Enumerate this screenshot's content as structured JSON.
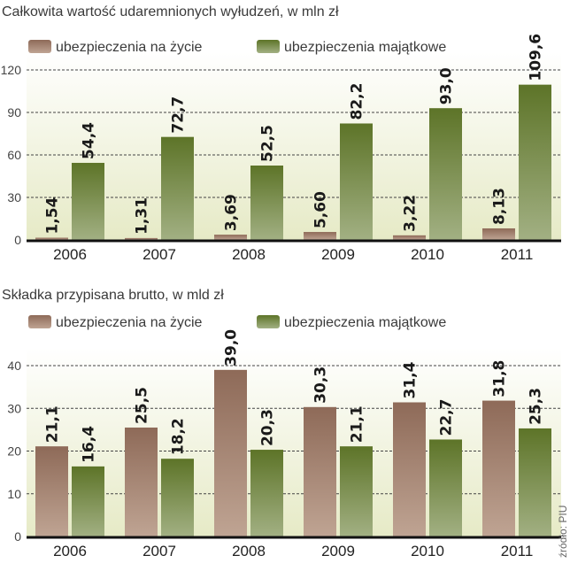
{
  "colors": {
    "life": "#9a7565",
    "property": "#6b7f3a",
    "background_bottom": "#e9edcc"
  },
  "source": "źródło: PIU",
  "chart_data": [
    {
      "type": "bar",
      "title": "Całkowita wartość udaremnionych wyłudzeń, w mln zł",
      "categories": [
        "2006",
        "2007",
        "2008",
        "2009",
        "2010",
        "2011"
      ],
      "series": [
        {
          "name": "ubezpieczenia na życie",
          "values": [
            1.54,
            1.31,
            3.69,
            5.6,
            3.22,
            8.13
          ],
          "labels": [
            "1,54",
            "1,31",
            "3,69",
            "5,60",
            "3,22",
            "8,13"
          ]
        },
        {
          "name": "ubezpieczenia majątkowe",
          "values": [
            54.4,
            72.7,
            52.5,
            82.2,
            93.0,
            109.6
          ],
          "labels": [
            "54,4",
            "72,7",
            "52,5",
            "82,2",
            "93,0",
            "109,6"
          ]
        }
      ],
      "yticks": [
        "0",
        "30",
        "60",
        "90",
        "120"
      ],
      "ylim": [
        0,
        120
      ],
      "grid": true,
      "legend": "top-left"
    },
    {
      "type": "bar",
      "title": "Składka przypisana brutto, w mld zł",
      "categories": [
        "2006",
        "2007",
        "2008",
        "2009",
        "2010",
        "2011"
      ],
      "series": [
        {
          "name": "ubezpieczenia na życie",
          "values": [
            21.1,
            25.5,
            39.0,
            30.3,
            31.4,
            31.8
          ],
          "labels": [
            "21,1",
            "25,5",
            "39,0",
            "30,3",
            "31,4",
            "31,8"
          ]
        },
        {
          "name": "ubezpieczenia majątkowe",
          "values": [
            16.4,
            18.2,
            20.3,
            21.1,
            22.7,
            25.3
          ],
          "labels": [
            "16,4",
            "18,2",
            "20,3",
            "21,1",
            "22,7",
            "25,3"
          ]
        }
      ],
      "yticks": [
        "0",
        "10",
        "20",
        "30",
        "40"
      ],
      "ylim": [
        0,
        40
      ],
      "grid": true,
      "legend": "top-left"
    }
  ]
}
